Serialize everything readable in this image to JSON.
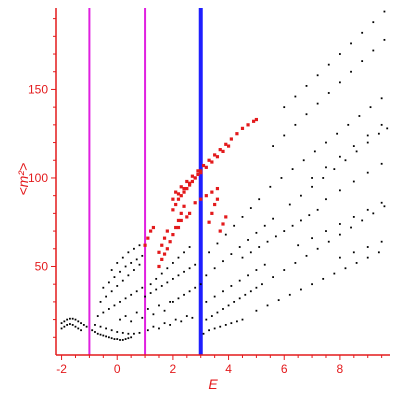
{
  "chart_data": {
    "type": "scatter",
    "title": "",
    "xlabel": "E",
    "ylabel": "<m²>",
    "xlim": [
      -2.2,
      9.8
    ],
    "ylim": [
      0,
      196
    ],
    "x_ticks": [
      -2,
      0,
      2,
      4,
      6,
      8
    ],
    "y_ticks": [
      50,
      100,
      150
    ],
    "grid": false,
    "axis_color": "#e31a1c",
    "vertical_lines": [
      {
        "x": -1.0,
        "color": "#e020e0"
      },
      {
        "x": 1.0,
        "color": "#e020e0"
      },
      {
        "x": 3.0,
        "color": "#1f1fff"
      }
    ],
    "series": [
      {
        "color": "#000000",
        "marker": "dot",
        "points": [
          [
            -2.0,
            18
          ],
          [
            -1.9,
            19
          ],
          [
            -1.8,
            20
          ],
          [
            -1.7,
            20.5
          ],
          [
            -1.6,
            20.5
          ],
          [
            -1.5,
            20
          ],
          [
            -1.4,
            19
          ],
          [
            -1.3,
            18
          ],
          [
            -1.2,
            17
          ],
          [
            -1.1,
            16
          ],
          [
            -2.0,
            15
          ],
          [
            -1.9,
            16
          ],
          [
            -1.8,
            17
          ],
          [
            -1.7,
            17.5
          ],
          [
            -1.6,
            17
          ],
          [
            -1.5,
            16
          ],
          [
            -1.4,
            15
          ],
          [
            -1.3,
            14
          ],
          [
            -0.9,
            14
          ],
          [
            -0.8,
            13
          ],
          [
            -0.7,
            12
          ],
          [
            -0.6,
            11.5
          ],
          [
            -0.5,
            11
          ],
          [
            -0.4,
            10.5
          ],
          [
            -0.3,
            10
          ],
          [
            -0.2,
            9.5
          ],
          [
            -0.1,
            9
          ],
          [
            0.0,
            9
          ],
          [
            0.1,
            8.5
          ],
          [
            0.2,
            8.5
          ],
          [
            0.3,
            9
          ],
          [
            0.4,
            9.5
          ],
          [
            0.5,
            10
          ],
          [
            -0.8,
            17
          ],
          [
            -0.6,
            16
          ],
          [
            -0.4,
            15
          ],
          [
            -0.2,
            14
          ],
          [
            0.0,
            13
          ],
          [
            0.2,
            12.5
          ],
          [
            0.4,
            12
          ],
          [
            0.6,
            12
          ],
          [
            0.8,
            12.5
          ],
          [
            -0.7,
            22
          ],
          [
            -0.5,
            24
          ],
          [
            -0.3,
            26
          ],
          [
            -0.1,
            28
          ],
          [
            0.1,
            30
          ],
          [
            0.3,
            32
          ],
          [
            0.5,
            34
          ],
          [
            0.7,
            36
          ],
          [
            0.9,
            38
          ],
          [
            -0.6,
            30
          ],
          [
            -0.4,
            33
          ],
          [
            -0.2,
            36
          ],
          [
            0.0,
            39
          ],
          [
            0.2,
            42
          ],
          [
            0.4,
            45
          ],
          [
            0.6,
            48
          ],
          [
            0.8,
            51
          ],
          [
            -0.5,
            38
          ],
          [
            -0.3,
            41
          ],
          [
            -0.1,
            44
          ],
          [
            0.1,
            47
          ],
          [
            0.3,
            50
          ],
          [
            0.5,
            52
          ],
          [
            0.7,
            54
          ],
          [
            0.9,
            56
          ],
          [
            -0.2,
            48
          ],
          [
            0.0,
            52
          ],
          [
            0.2,
            55
          ],
          [
            0.4,
            58
          ],
          [
            0.6,
            60
          ],
          [
            0.8,
            62
          ],
          [
            0.1,
            20
          ],
          [
            0.3,
            22
          ],
          [
            0.5,
            19
          ],
          [
            0.7,
            24
          ],
          [
            0.9,
            21
          ],
          [
            1.1,
            26
          ],
          [
            1.3,
            23
          ],
          [
            1.5,
            28
          ],
          [
            1.7,
            25
          ],
          [
            1.9,
            30
          ],
          [
            1.1,
            14
          ],
          [
            1.3,
            16
          ],
          [
            1.5,
            15
          ],
          [
            1.7,
            18
          ],
          [
            1.9,
            17
          ],
          [
            2.1,
            20
          ],
          [
            2.3,
            19
          ],
          [
            2.5,
            22
          ],
          [
            2.7,
            21
          ],
          [
            1.2,
            40
          ],
          [
            1.4,
            43
          ],
          [
            1.6,
            46
          ],
          [
            1.8,
            49
          ],
          [
            2.0,
            52
          ],
          [
            2.2,
            55
          ],
          [
            2.4,
            58
          ],
          [
            2.6,
            61
          ],
          [
            1.0,
            33
          ],
          [
            1.2,
            35
          ],
          [
            1.4,
            37
          ],
          [
            1.6,
            39
          ],
          [
            1.8,
            41
          ],
          [
            2.0,
            43
          ],
          [
            2.2,
            45
          ],
          [
            2.4,
            47
          ],
          [
            2.6,
            49
          ],
          [
            2.8,
            51
          ],
          [
            2.0,
            30
          ],
          [
            2.2,
            32
          ],
          [
            2.4,
            34
          ],
          [
            2.6,
            36
          ],
          [
            2.8,
            38
          ],
          [
            3.0,
            40
          ],
          [
            3.2,
            20
          ],
          [
            3.4,
            22
          ],
          [
            3.6,
            24
          ],
          [
            3.8,
            26
          ],
          [
            4.0,
            28
          ],
          [
            4.2,
            30
          ],
          [
            4.4,
            32
          ],
          [
            4.6,
            34
          ],
          [
            4.8,
            36
          ],
          [
            5.0,
            38
          ],
          [
            3.2,
            30
          ],
          [
            3.5,
            33
          ],
          [
            3.8,
            36
          ],
          [
            4.1,
            39
          ],
          [
            4.4,
            42
          ],
          [
            4.7,
            45
          ],
          [
            5.0,
            48
          ],
          [
            5.3,
            51
          ],
          [
            3.2,
            45
          ],
          [
            3.5,
            49
          ],
          [
            3.8,
            53
          ],
          [
            4.1,
            57
          ],
          [
            4.4,
            61
          ],
          [
            4.7,
            65
          ],
          [
            5.0,
            69
          ],
          [
            5.3,
            73
          ],
          [
            5.6,
            77
          ],
          [
            3.3,
            58
          ],
          [
            3.6,
            63
          ],
          [
            3.9,
            68
          ],
          [
            4.2,
            73
          ],
          [
            4.5,
            78
          ],
          [
            4.8,
            83
          ],
          [
            5.1,
            88
          ],
          [
            3.1,
            12
          ],
          [
            3.3,
            14
          ],
          [
            3.5,
            15
          ],
          [
            3.7,
            16
          ],
          [
            3.9,
            17
          ],
          [
            4.1,
            18
          ],
          [
            4.3,
            19
          ],
          [
            4.5,
            20
          ],
          [
            4.5,
            55
          ],
          [
            4.8,
            58
          ],
          [
            5.1,
            61
          ],
          [
            5.4,
            64
          ],
          [
            5.7,
            67
          ],
          [
            6.0,
            70
          ],
          [
            6.3,
            73
          ],
          [
            6.6,
            76
          ],
          [
            6.9,
            79
          ],
          [
            7.2,
            82
          ],
          [
            5.0,
            25
          ],
          [
            5.4,
            28
          ],
          [
            5.8,
            31
          ],
          [
            6.2,
            34
          ],
          [
            6.6,
            37
          ],
          [
            7.0,
            40
          ],
          [
            7.4,
            43
          ],
          [
            7.8,
            46
          ],
          [
            8.2,
            49
          ],
          [
            8.6,
            52
          ],
          [
            9.0,
            55
          ],
          [
            9.4,
            58
          ],
          [
            5.2,
            40
          ],
          [
            5.6,
            44
          ],
          [
            6.0,
            48
          ],
          [
            6.4,
            52
          ],
          [
            6.8,
            56
          ],
          [
            7.2,
            60
          ],
          [
            7.6,
            64
          ],
          [
            8.0,
            68
          ],
          [
            8.4,
            72
          ],
          [
            8.8,
            76
          ],
          [
            9.2,
            80
          ],
          [
            9.6,
            84
          ],
          [
            5.5,
            95
          ],
          [
            5.9,
            100
          ],
          [
            6.3,
            105
          ],
          [
            6.7,
            110
          ],
          [
            7.1,
            115
          ],
          [
            7.5,
            120
          ],
          [
            7.9,
            125
          ],
          [
            8.3,
            130
          ],
          [
            8.7,
            135
          ],
          [
            9.1,
            140
          ],
          [
            9.5,
            145
          ],
          [
            5.6,
            118
          ],
          [
            6.0,
            124
          ],
          [
            6.4,
            130
          ],
          [
            6.8,
            136
          ],
          [
            7.2,
            142
          ],
          [
            7.6,
            148
          ],
          [
            8.0,
            154
          ],
          [
            8.4,
            160
          ],
          [
            8.8,
            166
          ],
          [
            9.2,
            172
          ],
          [
            9.6,
            178
          ],
          [
            6.0,
            140
          ],
          [
            6.4,
            146
          ],
          [
            6.8,
            152
          ],
          [
            7.2,
            158
          ],
          [
            7.6,
            164
          ],
          [
            8.0,
            170
          ],
          [
            8.4,
            176
          ],
          [
            8.8,
            182
          ],
          [
            9.2,
            188
          ],
          [
            9.6,
            194
          ],
          [
            6.2,
            85
          ],
          [
            6.6,
            90
          ],
          [
            7.0,
            95
          ],
          [
            7.4,
            100
          ],
          [
            7.8,
            105
          ],
          [
            8.2,
            110
          ],
          [
            8.6,
            115
          ],
          [
            9.0,
            120
          ],
          [
            9.4,
            125
          ],
          [
            9.7,
            128
          ],
          [
            6.5,
            62
          ],
          [
            7.0,
            66
          ],
          [
            7.5,
            70
          ],
          [
            8.0,
            74
          ],
          [
            8.5,
            78
          ],
          [
            9.0,
            82
          ],
          [
            9.5,
            86
          ],
          [
            7.0,
            100
          ],
          [
            7.5,
            106
          ],
          [
            8.0,
            112
          ],
          [
            8.5,
            118
          ],
          [
            9.0,
            124
          ],
          [
            9.5,
            130
          ],
          [
            7.5,
            88
          ],
          [
            8.0,
            93
          ],
          [
            8.5,
            98
          ],
          [
            9.0,
            103
          ],
          [
            9.5,
            108
          ],
          [
            8.0,
            55
          ],
          [
            8.5,
            58
          ],
          [
            9.0,
            61
          ],
          [
            9.5,
            64
          ]
        ]
      },
      {
        "color": "#e31a1c",
        "marker": "square",
        "points": [
          [
            1.0,
            62
          ],
          [
            1.1,
            66
          ],
          [
            1.2,
            70
          ],
          [
            1.3,
            72
          ],
          [
            1.5,
            58
          ],
          [
            1.6,
            62
          ],
          [
            1.7,
            66
          ],
          [
            1.8,
            70
          ],
          [
            1.5,
            50
          ],
          [
            1.6,
            54
          ],
          [
            1.7,
            57
          ],
          [
            1.8,
            60
          ],
          [
            1.9,
            64
          ],
          [
            2.0,
            68
          ],
          [
            2.1,
            72
          ],
          [
            2.2,
            76
          ],
          [
            2.3,
            80
          ],
          [
            2.4,
            84
          ],
          [
            2.0,
            82
          ],
          [
            2.1,
            85
          ],
          [
            2.2,
            88
          ],
          [
            2.3,
            90
          ],
          [
            2.4,
            92
          ],
          [
            2.5,
            94
          ],
          [
            2.6,
            96
          ],
          [
            2.7,
            98
          ],
          [
            2.8,
            100
          ],
          [
            2.9,
            102
          ],
          [
            3.0,
            104
          ],
          [
            2.0,
            88
          ],
          [
            2.2,
            91
          ],
          [
            2.4,
            94
          ],
          [
            2.6,
            97
          ],
          [
            2.8,
            100
          ],
          [
            3.0,
            103
          ],
          [
            3.2,
            106
          ],
          [
            3.4,
            109
          ],
          [
            3.6,
            112
          ],
          [
            3.8,
            115
          ],
          [
            4.0,
            118
          ],
          [
            2.1,
            92
          ],
          [
            2.3,
            95
          ],
          [
            2.5,
            98
          ],
          [
            2.7,
            101
          ],
          [
            2.9,
            104
          ],
          [
            3.1,
            107
          ],
          [
            3.3,
            110
          ],
          [
            3.5,
            113
          ],
          [
            3.7,
            116
          ],
          [
            3.9,
            119
          ],
          [
            4.1,
            122
          ],
          [
            4.3,
            125
          ],
          [
            4.5,
            128
          ],
          [
            4.7,
            130
          ],
          [
            4.9,
            132
          ],
          [
            5.0,
            133
          ],
          [
            2.8,
            86
          ],
          [
            3.0,
            88
          ],
          [
            3.2,
            90
          ],
          [
            3.4,
            92
          ],
          [
            3.6,
            94
          ],
          [
            3.3,
            75
          ],
          [
            3.4,
            80
          ],
          [
            3.5,
            85
          ],
          [
            3.6,
            88
          ],
          [
            3.7,
            70
          ],
          [
            3.8,
            74
          ],
          [
            3.9,
            78
          ],
          [
            2.2,
            72
          ],
          [
            2.3,
            76
          ],
          [
            2.5,
            78
          ],
          [
            2.6,
            80
          ]
        ]
      }
    ]
  }
}
